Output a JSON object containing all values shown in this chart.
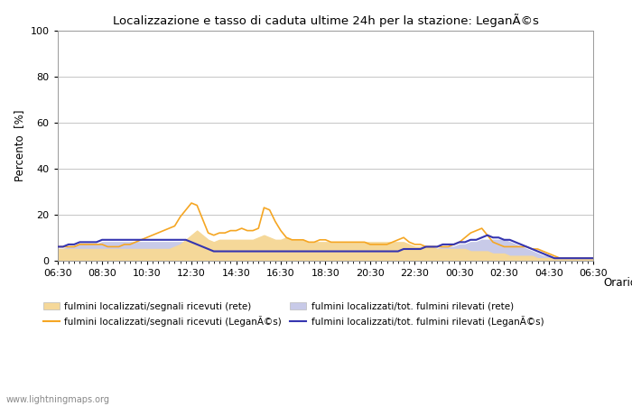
{
  "title": "Localizzazione e tasso di caduta ultime 24h per la stazione: LeganÃ©s",
  "ylabel": "Percento  [%]",
  "xlabel": "Orario",
  "ylim": [
    0,
    100
  ],
  "yticks": [
    0,
    20,
    40,
    60,
    80,
    100
  ],
  "x_labels": [
    "06:30",
    "08:30",
    "10:30",
    "12:30",
    "14:30",
    "16:30",
    "18:30",
    "20:30",
    "22:30",
    "00:30",
    "02:30",
    "04:30",
    "06:30"
  ],
  "watermark": "www.lightningmaps.org",
  "color_fill_orange": "#f5d899",
  "color_fill_blue": "#c8cae8",
  "color_line_orange": "#f5a623",
  "color_line_blue": "#3535b0",
  "legend_labels": [
    "fulmini localizzati/segnali ricevuti (rete)",
    "fulmini localizzati/segnali ricevuti (LeganÃ©s)",
    "fulmini localizzati/tot. fulmini rilevati (rete)",
    "fulmini localizzati/tot. fulmini rilevati (LeganÃ©s)"
  ],
  "n_points": 97,
  "orange_fill": [
    5,
    5,
    5,
    5,
    5,
    5,
    5,
    5,
    5,
    5,
    5,
    5,
    5,
    5,
    5,
    5,
    5,
    5,
    5,
    5,
    5,
    6,
    7,
    9,
    11,
    13,
    11,
    9,
    8,
    9,
    9,
    9,
    9,
    9,
    9,
    9,
    10,
    11,
    10,
    9,
    9,
    10,
    9,
    9,
    9,
    8,
    8,
    8,
    8,
    8,
    8,
    8,
    8,
    8,
    8,
    8,
    8,
    8,
    8,
    8,
    8,
    8,
    8,
    7,
    6,
    6,
    6,
    6,
    5,
    5,
    5,
    5,
    5,
    5,
    4,
    4,
    4,
    4,
    3,
    3,
    3,
    2,
    2,
    2,
    2,
    2,
    1,
    1,
    1,
    1,
    1,
    1,
    1,
    1,
    1,
    1,
    1
  ],
  "orange_line": [
    6,
    6,
    6,
    6,
    7,
    7,
    7,
    7,
    7,
    6,
    6,
    6,
    7,
    7,
    8,
    9,
    10,
    11,
    12,
    13,
    14,
    15,
    19,
    22,
    25,
    24,
    18,
    12,
    11,
    12,
    12,
    13,
    13,
    14,
    13,
    13,
    14,
    23,
    22,
    17,
    13,
    10,
    9,
    9,
    9,
    8,
    8,
    9,
    9,
    8,
    8,
    8,
    8,
    8,
    8,
    8,
    7,
    7,
    7,
    7,
    8,
    9,
    10,
    8,
    7,
    7,
    6,
    6,
    6,
    6,
    6,
    7,
    8,
    10,
    12,
    13,
    14,
    11,
    8,
    7,
    6,
    6,
    6,
    6,
    6,
    5,
    5,
    4,
    3,
    2,
    1,
    1,
    1,
    1,
    1,
    1,
    1
  ],
  "blue_fill": [
    5,
    5,
    6,
    6,
    7,
    7,
    7,
    7,
    8,
    8,
    8,
    8,
    8,
    8,
    8,
    8,
    8,
    8,
    8,
    8,
    8,
    8,
    8,
    8,
    7,
    6,
    5,
    4,
    3,
    3,
    3,
    3,
    3,
    3,
    3,
    3,
    3,
    3,
    3,
    3,
    3,
    3,
    3,
    3,
    3,
    3,
    3,
    3,
    3,
    3,
    3,
    3,
    3,
    3,
    3,
    3,
    3,
    3,
    3,
    3,
    3,
    3,
    4,
    4,
    4,
    4,
    5,
    5,
    5,
    6,
    6,
    6,
    7,
    7,
    8,
    8,
    9,
    9,
    9,
    9,
    9,
    8,
    7,
    6,
    5,
    4,
    3,
    2,
    2,
    1,
    1,
    1,
    1,
    1,
    1,
    1,
    1
  ],
  "blue_line": [
    6,
    6,
    7,
    7,
    8,
    8,
    8,
    8,
    9,
    9,
    9,
    9,
    9,
    9,
    9,
    9,
    9,
    9,
    9,
    9,
    9,
    9,
    9,
    9,
    8,
    7,
    6,
    5,
    4,
    4,
    4,
    4,
    4,
    4,
    4,
    4,
    4,
    4,
    4,
    4,
    4,
    4,
    4,
    4,
    4,
    4,
    4,
    4,
    4,
    4,
    4,
    4,
    4,
    4,
    4,
    4,
    4,
    4,
    4,
    4,
    4,
    4,
    5,
    5,
    5,
    5,
    6,
    6,
    6,
    7,
    7,
    7,
    8,
    8,
    9,
    9,
    10,
    11,
    10,
    10,
    9,
    9,
    8,
    7,
    6,
    5,
    4,
    3,
    2,
    1,
    1,
    1,
    1,
    1,
    1,
    1,
    1
  ]
}
